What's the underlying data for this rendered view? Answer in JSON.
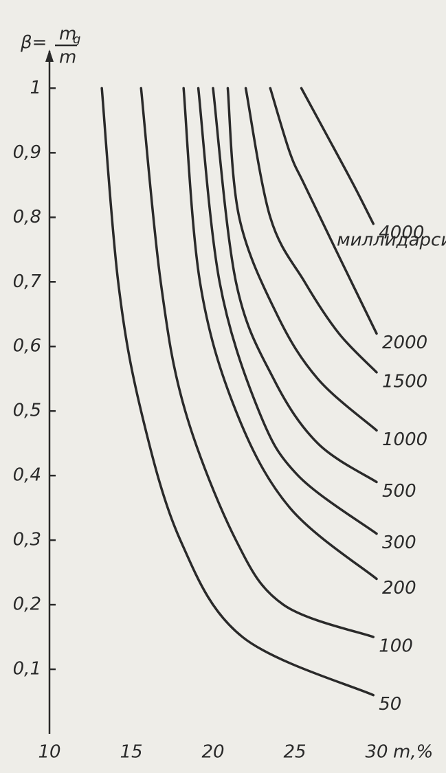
{
  "chart_data": {
    "type": "line",
    "y_label": {
      "prefix": "β=",
      "numerator": "m",
      "subscript": "g",
      "denominator": "m"
    },
    "x_label": "m,%",
    "annotation": "миллидарси",
    "xlim": [
      10,
      30
    ],
    "ylim": [
      0,
      1.06
    ],
    "xticks": [
      10,
      15,
      20,
      25,
      30
    ],
    "yticks": [
      {
        "value": 0.1,
        "label": "0,1"
      },
      {
        "value": 0.2,
        "label": "0,2"
      },
      {
        "value": 0.3,
        "label": "0,3"
      },
      {
        "value": 0.4,
        "label": "0,4"
      },
      {
        "value": 0.5,
        "label": "0,5"
      },
      {
        "value": 0.6,
        "label": "0,6"
      },
      {
        "value": 0.7,
        "label": "0,7"
      },
      {
        "value": 0.8,
        "label": "0,8"
      },
      {
        "value": 0.9,
        "label": "0,9"
      },
      1
    ],
    "color": "#2a2a2a",
    "series": [
      {
        "name": "50",
        "x": [
          13.2,
          14.2,
          15.6,
          18.0,
          21.8,
          29.8
        ],
        "values": [
          1,
          0.7,
          0.5,
          0.3,
          0.15,
          0.06
        ]
      },
      {
        "name": "100",
        "x": [
          15.6,
          16.8,
          18.3,
          21.4,
          24.3,
          29.8
        ],
        "values": [
          1,
          0.7,
          0.5,
          0.3,
          0.2,
          0.15
        ]
      },
      {
        "name": "200",
        "x": [
          18.2,
          19.2,
          21.4,
          24.7,
          30
        ],
        "values": [
          1,
          0.7,
          0.5,
          0.35,
          0.24
        ]
      },
      {
        "name": "300",
        "x": [
          19.1,
          20.4,
          22.8,
          25.2,
          30
        ],
        "values": [
          1,
          0.7,
          0.5,
          0.4,
          0.31
        ]
      },
      {
        "name": "500",
        "x": [
          20,
          21.4,
          23.7,
          26.4,
          30
        ],
        "values": [
          1,
          0.7,
          0.55,
          0.45,
          0.39
        ]
      },
      {
        "name": "1000",
        "x": [
          20.9,
          21.6,
          23.9,
          26.4,
          30
        ],
        "values": [
          1,
          0.8,
          0.65,
          0.55,
          0.47
        ]
      },
      {
        "name": "1500",
        "x": [
          22,
          23.5,
          25.6,
          27.7,
          30
        ],
        "values": [
          1,
          0.8,
          0.7,
          0.62,
          0.56
        ]
      },
      {
        "name": "2000",
        "x": [
          23.5,
          24.7,
          25.6,
          27.5,
          30
        ],
        "values": [
          1,
          0.9,
          0.85,
          0.75,
          0.62
        ]
      },
      {
        "name": "4000",
        "x": [
          25.4,
          26.9,
          28.6,
          29.8
        ],
        "values": [
          1,
          0.93,
          0.85,
          0.79
        ]
      }
    ]
  }
}
